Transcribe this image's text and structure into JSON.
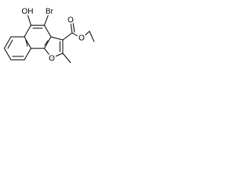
{
  "labels": {
    "hydroxyl": "OH",
    "bromo": "Br",
    "carbonyl_oxygen": "O",
    "ester_oxygen": "O",
    "furan_oxygen": "O"
  }
}
